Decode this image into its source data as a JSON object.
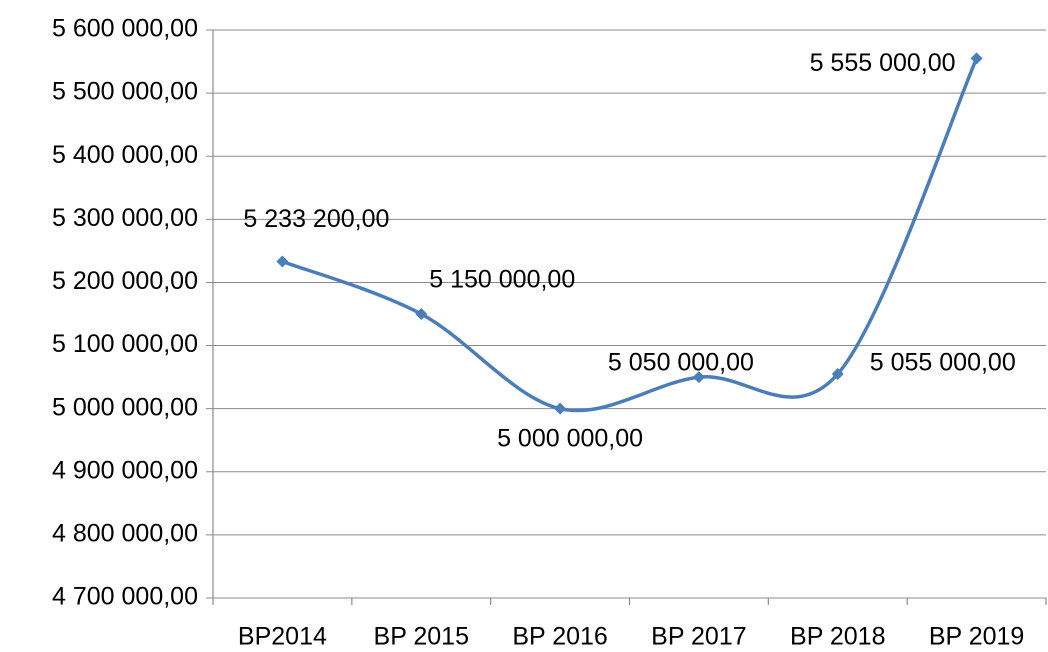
{
  "chart_data": {
    "type": "line",
    "categories": [
      "BP2014",
      "BP 2015",
      "BP 2016",
      "BP 2017",
      "BP 2018",
      "BP 2019"
    ],
    "series": [
      {
        "color": "#4a7ebb",
        "values": [
          5233200,
          5150000,
          5000000,
          5050000,
          5055000,
          5555000
        ],
        "value_labels": [
          "5 233 200,00",
          "5 150 000,00",
          "5 000 000,00",
          "5 050 000,00",
          "5 055 000,00",
          "5 555 000,00"
        ]
      }
    ],
    "ylim": [
      4700000,
      5600000
    ],
    "yticks": [
      {
        "value": 4700000,
        "label": "4 700 000,00"
      },
      {
        "value": 4800000,
        "label": "4 800 000,00"
      },
      {
        "value": 4900000,
        "label": "4 900 000,00"
      },
      {
        "value": 5000000,
        "label": "5 000 000,00"
      },
      {
        "value": 5100000,
        "label": "5 100 000,00"
      },
      {
        "value": 5200000,
        "label": "5 200 000,00"
      },
      {
        "value": 5300000,
        "label": "5 300 000,00"
      },
      {
        "value": 5400000,
        "label": "5 400 000,00"
      },
      {
        "value": 5500000,
        "label": "5 500 000,00"
      },
      {
        "value": 5600000,
        "label": "5 600 000,00"
      }
    ],
    "grid": true,
    "smooth": true
  }
}
